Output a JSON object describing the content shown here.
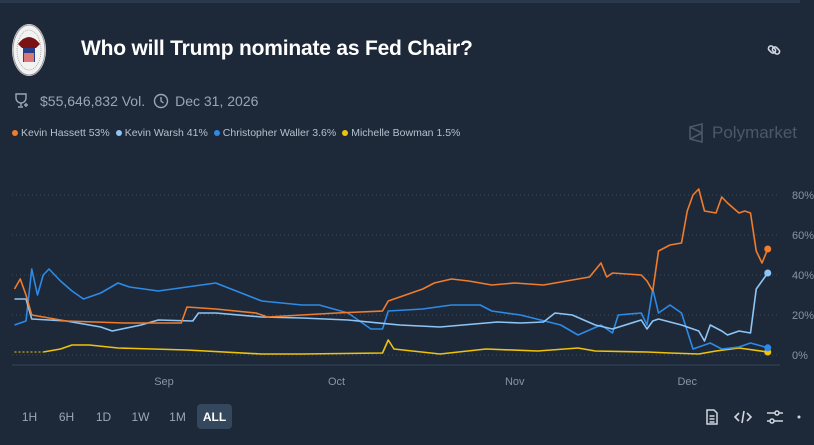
{
  "header": {
    "title": "Who will Trump nominate as Fed Chair?",
    "logo": "federal-reserve-seal"
  },
  "meta": {
    "volume": "$55,646,832 Vol.",
    "end_date": "Dec 31, 2026"
  },
  "watermark": "Polymarket",
  "legend": [
    {
      "name": "Kevin Hassett",
      "value": "53%",
      "color": "#f07c2c"
    },
    {
      "name": "Kevin Warsh",
      "value": "41%",
      "color": "#8ec5f5"
    },
    {
      "name": "Christopher Waller",
      "value": "3.6%",
      "color": "#2d8ae6"
    },
    {
      "name": "Michelle Bowman",
      "value": "1.5%",
      "color": "#f0c20a"
    }
  ],
  "ranges": [
    {
      "label": "1H"
    },
    {
      "label": "6H"
    },
    {
      "label": "1D"
    },
    {
      "label": "1W"
    },
    {
      "label": "1M"
    },
    {
      "label": "ALL",
      "active": true
    }
  ],
  "tools": [
    "document-icon",
    "code-icon",
    "sliders-icon"
  ],
  "chart_data": {
    "type": "line",
    "x_ticks": [
      {
        "date": "2025-09-01",
        "label": "Sep"
      },
      {
        "date": "2025-10-01",
        "label": "Oct"
      },
      {
        "date": "2025-11-01",
        "label": "Nov"
      },
      {
        "date": "2025-12-01",
        "label": "Dec"
      }
    ],
    "y_ticks": [
      "0%",
      "20%",
      "40%",
      "60%",
      "80%"
    ],
    "ylim": [
      0,
      80
    ],
    "grid": "horizontal dotted",
    "series": [
      {
        "name": "Kevin Hassett",
        "color": "#f07c2c",
        "points": [
          [
            "2025-08-06",
            33
          ],
          [
            "2025-08-07",
            38
          ],
          [
            "2025-08-08",
            30
          ],
          [
            "2025-08-09",
            20
          ],
          [
            "2025-08-15",
            17
          ],
          [
            "2025-08-25",
            16
          ],
          [
            "2025-09-04",
            16
          ],
          [
            "2025-09-05",
            24
          ],
          [
            "2025-09-10",
            23
          ],
          [
            "2025-09-17",
            21
          ],
          [
            "2025-09-19",
            19
          ],
          [
            "2025-09-25",
            20
          ],
          [
            "2025-10-01",
            21
          ],
          [
            "2025-10-09",
            22
          ],
          [
            "2025-10-10",
            27
          ],
          [
            "2025-10-13",
            30
          ],
          [
            "2025-10-16",
            33
          ],
          [
            "2025-10-18",
            36
          ],
          [
            "2025-10-21",
            38
          ],
          [
            "2025-10-24",
            37
          ],
          [
            "2025-10-28",
            35
          ],
          [
            "2025-11-01",
            36
          ],
          [
            "2025-11-06",
            35
          ],
          [
            "2025-11-10",
            37
          ],
          [
            "2025-11-14",
            39
          ],
          [
            "2025-11-16",
            46
          ],
          [
            "2025-11-17",
            39
          ],
          [
            "2025-11-18",
            41
          ],
          [
            "2025-11-23",
            40
          ],
          [
            "2025-11-24",
            37
          ],
          [
            "2025-11-25",
            32
          ],
          [
            "2025-11-26",
            52
          ],
          [
            "2025-11-28",
            55
          ],
          [
            "2025-11-30",
            56
          ],
          [
            "2025-12-01",
            72
          ],
          [
            "2025-12-02",
            80
          ],
          [
            "2025-12-03",
            83
          ],
          [
            "2025-12-04",
            72
          ],
          [
            "2025-12-06",
            71
          ],
          [
            "2025-12-07",
            79
          ],
          [
            "2025-12-08",
            76
          ],
          [
            "2025-12-10",
            71
          ],
          [
            "2025-12-11",
            72
          ],
          [
            "2025-12-12",
            71
          ],
          [
            "2025-12-13",
            52
          ],
          [
            "2025-12-14",
            46
          ],
          [
            "2025-12-15",
            53
          ]
        ]
      },
      {
        "name": "Kevin Warsh",
        "color": "#8ec5f5",
        "points": [
          [
            "2025-08-06",
            28
          ],
          [
            "2025-08-08",
            28
          ],
          [
            "2025-08-09",
            18
          ],
          [
            "2025-08-15",
            17
          ],
          [
            "2025-08-21",
            14
          ],
          [
            "2025-08-23",
            12
          ],
          [
            "2025-08-28",
            15
          ],
          [
            "2025-08-31",
            17.5
          ],
          [
            "2025-09-06",
            17
          ],
          [
            "2025-09-07",
            21
          ],
          [
            "2025-09-10",
            21
          ],
          [
            "2025-09-18",
            19
          ],
          [
            "2025-09-25",
            18.5
          ],
          [
            "2025-10-03",
            17.5
          ],
          [
            "2025-10-12",
            15
          ],
          [
            "2025-10-19",
            14
          ],
          [
            "2025-10-29",
            16.5
          ],
          [
            "2025-11-02",
            16
          ],
          [
            "2025-11-06",
            16.5
          ],
          [
            "2025-11-08",
            21
          ],
          [
            "2025-11-11",
            20
          ],
          [
            "2025-11-15",
            15
          ],
          [
            "2025-11-18",
            13
          ],
          [
            "2025-11-23",
            17.5
          ],
          [
            "2025-11-24",
            13
          ],
          [
            "2025-11-25",
            17
          ],
          [
            "2025-11-26",
            18
          ],
          [
            "2025-11-30",
            15
          ],
          [
            "2025-12-03",
            12
          ],
          [
            "2025-12-04",
            7
          ],
          [
            "2025-12-05",
            15
          ],
          [
            "2025-12-07",
            12
          ],
          [
            "2025-12-08",
            10
          ],
          [
            "2025-12-10",
            12
          ],
          [
            "2025-12-12",
            11
          ],
          [
            "2025-12-13",
            33
          ],
          [
            "2025-12-14",
            37
          ],
          [
            "2025-12-15",
            41
          ]
        ]
      },
      {
        "name": "Christopher Waller",
        "color": "#2d8ae6",
        "points": [
          [
            "2025-08-06",
            15
          ],
          [
            "2025-08-08",
            17
          ],
          [
            "2025-08-09",
            43
          ],
          [
            "2025-08-10",
            30
          ],
          [
            "2025-08-11",
            40
          ],
          [
            "2025-08-12",
            43
          ],
          [
            "2025-08-14",
            37
          ],
          [
            "2025-08-16",
            32
          ],
          [
            "2025-08-18",
            28
          ],
          [
            "2025-08-21",
            31
          ],
          [
            "2025-08-24",
            36
          ],
          [
            "2025-08-26",
            34
          ],
          [
            "2025-08-31",
            32
          ],
          [
            "2025-09-05",
            34
          ],
          [
            "2025-09-10",
            36
          ],
          [
            "2025-09-18",
            27
          ],
          [
            "2025-09-25",
            25
          ],
          [
            "2025-09-28",
            25
          ],
          [
            "2025-10-03",
            21
          ],
          [
            "2025-10-07",
            13
          ],
          [
            "2025-10-09",
            13
          ],
          [
            "2025-10-10",
            22
          ],
          [
            "2025-10-16",
            23
          ],
          [
            "2025-10-21",
            25
          ],
          [
            "2025-10-26",
            25
          ],
          [
            "2025-10-28",
            22
          ],
          [
            "2025-11-02",
            20
          ],
          [
            "2025-11-09",
            15
          ],
          [
            "2025-11-12",
            10
          ],
          [
            "2025-11-16",
            15
          ],
          [
            "2025-11-18",
            11
          ],
          [
            "2025-11-19",
            20
          ],
          [
            "2025-11-23",
            21
          ],
          [
            "2025-11-24",
            15
          ],
          [
            "2025-11-25",
            33
          ],
          [
            "2025-11-26",
            21
          ],
          [
            "2025-11-28",
            25
          ],
          [
            "2025-11-30",
            21
          ],
          [
            "2025-12-01",
            12
          ],
          [
            "2025-12-02",
            3
          ],
          [
            "2025-12-03",
            4
          ],
          [
            "2025-12-05",
            6
          ],
          [
            "2025-12-07",
            3
          ],
          [
            "2025-12-10",
            4
          ],
          [
            "2025-12-12",
            6
          ],
          [
            "2025-12-15",
            3.6
          ]
        ]
      },
      {
        "name": "Michelle Bowman",
        "color": "#f0c20a",
        "points": [
          [
            "2025-08-06",
            1.5
          ],
          [
            "2025-08-11",
            1.5
          ],
          [
            "2025-08-14",
            3
          ],
          [
            "2025-08-16",
            5
          ],
          [
            "2025-08-19",
            5
          ],
          [
            "2025-08-24",
            3.5
          ],
          [
            "2025-09-05",
            2.5
          ],
          [
            "2025-09-18",
            0.5
          ],
          [
            "2025-09-25",
            0.5
          ],
          [
            "2025-10-09",
            1
          ],
          [
            "2025-10-10",
            7.5
          ],
          [
            "2025-10-11",
            3
          ],
          [
            "2025-10-19",
            0.5
          ],
          [
            "2025-10-27",
            3
          ],
          [
            "2025-11-05",
            2
          ],
          [
            "2025-11-12",
            3.5
          ],
          [
            "2025-11-15",
            2
          ],
          [
            "2025-11-24",
            1.5
          ],
          [
            "2025-11-28",
            1
          ],
          [
            "2025-12-03",
            0.5
          ],
          [
            "2025-12-06",
            2
          ],
          [
            "2025-12-10",
            3.5
          ],
          [
            "2025-12-15",
            1.5
          ]
        ]
      }
    ]
  }
}
